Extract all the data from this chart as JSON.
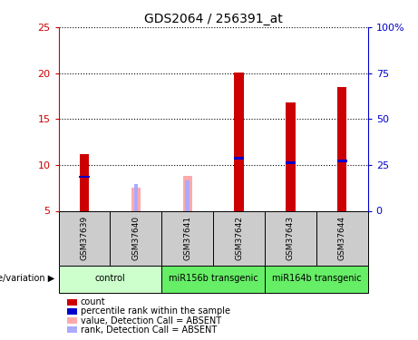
{
  "title": "GDS2064 / 256391_at",
  "samples": [
    "GSM37639",
    "GSM37640",
    "GSM37641",
    "GSM37642",
    "GSM37643",
    "GSM37644"
  ],
  "count_values": [
    11.2,
    0.0,
    0.0,
    20.1,
    16.8,
    18.5
  ],
  "rank_values": [
    8.7,
    0.0,
    0.0,
    10.7,
    10.2,
    10.4
  ],
  "absent_value_values": [
    0.0,
    7.5,
    8.8,
    0.0,
    0.0,
    0.0
  ],
  "absent_rank_values": [
    0.0,
    7.9,
    8.3,
    0.0,
    0.0,
    0.0
  ],
  "ylim_left": [
    5,
    25
  ],
  "ylim_right": [
    0,
    100
  ],
  "yticks_left": [
    5,
    10,
    15,
    20,
    25
  ],
  "yticks_right": [
    0,
    25,
    50,
    75,
    100
  ],
  "ytick_labels_left": [
    "5",
    "10",
    "15",
    "20",
    "25"
  ],
  "ytick_labels_right": [
    "0",
    "25",
    "50",
    "75",
    "100%"
  ],
  "group_spans": [
    {
      "start": 0,
      "end": 2,
      "label": "control",
      "color": "#ccffcc"
    },
    {
      "start": 2,
      "end": 4,
      "label": "miR156b transgenic",
      "color": "#66ee66"
    },
    {
      "start": 4,
      "end": 6,
      "label": "miR164b transgenic",
      "color": "#66ee66"
    }
  ],
  "bar_width": 0.18,
  "count_color": "#cc0000",
  "rank_color": "#0000cc",
  "absent_value_color": "#ffaaaa",
  "absent_rank_color": "#aaaaff",
  "left_axis_color": "#cc0000",
  "right_axis_color": "#0000cc",
  "sample_box_color": "#cccccc",
  "legend_items": [
    {
      "label": "count",
      "color": "#cc0000"
    },
    {
      "label": "percentile rank within the sample",
      "color": "#0000cc"
    },
    {
      "label": "value, Detection Call = ABSENT",
      "color": "#ffaaaa"
    },
    {
      "label": "rank, Detection Call = ABSENT",
      "color": "#aaaaff"
    }
  ],
  "genotype_label": "genotype/variation"
}
